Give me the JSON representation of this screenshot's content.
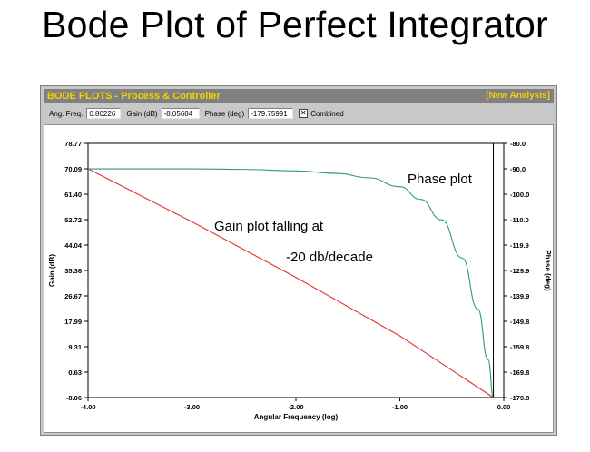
{
  "slide_title": "Bode Plot of Perfect Integrator",
  "window": {
    "title": "BODE PLOTS - Process & Controller",
    "action_link": "[New Analysis]"
  },
  "toolbar": {
    "ang_freq_label": "Ang. Freq.",
    "ang_freq_value": "0.80226",
    "gain_label": "Gain (dB)",
    "gain_value": "-8.05684",
    "phase_label": "Phase (deg)",
    "phase_value": "-179.75991",
    "combined_label": "Combined",
    "combined_checked": true
  },
  "annotations": {
    "phase": "Phase plot",
    "gain_line1": "Gain plot falling at",
    "gain_line2": "-20 db/decade"
  },
  "chart_data": {
    "type": "line",
    "xlabel": "Angular Frequency (log)",
    "ylabel_left": "Gain (dB)",
    "ylabel_right": "Phase (deg)",
    "xlim": [
      -4.0,
      0.0
    ],
    "x_ticks": [
      "-4.00",
      "-3.00",
      "-2.00",
      "-1.00",
      "0.00"
    ],
    "y_left_ticks": [
      "78.77",
      "70.09",
      "61.40",
      "52.72",
      "44.04",
      "35.36",
      "26.67",
      "17.99",
      "9.31",
      "0.63",
      "-8.06"
    ],
    "y_left_lim": [
      -8.06,
      78.77
    ],
    "y_right_ticks": [
      "-80.0",
      "-90.0",
      "-100.0",
      "-110.0",
      "-119.9",
      "-129.9",
      "-139.9",
      "-149.8",
      "-159.8",
      "-169.8",
      "-179.8"
    ],
    "y_right_lim": [
      -179.8,
      -80.0
    ],
    "series": [
      {
        "color": "#e83030",
        "axis": "left",
        "x": [
          -4.0,
          -3.0,
          -2.0,
          -1.0,
          -0.1
        ],
        "y": [
          70.09,
          52.0,
          33.0,
          13.0,
          -8.06
        ]
      },
      {
        "color": "#2a9a80",
        "axis": "right",
        "x": [
          -4.0,
          -3.0,
          -2.5,
          -2.0,
          -1.6,
          -1.3,
          -1.0,
          -0.8,
          -0.6,
          -0.4,
          -0.25,
          -0.15,
          -0.1
        ],
        "y": [
          -90.0,
          -90.0,
          -90.2,
          -90.8,
          -91.8,
          -93.5,
          -97.0,
          -102.0,
          -110.0,
          -125.0,
          -145.0,
          -165.0,
          -179.8
        ]
      }
    ],
    "grid": false,
    "legend": "none"
  }
}
